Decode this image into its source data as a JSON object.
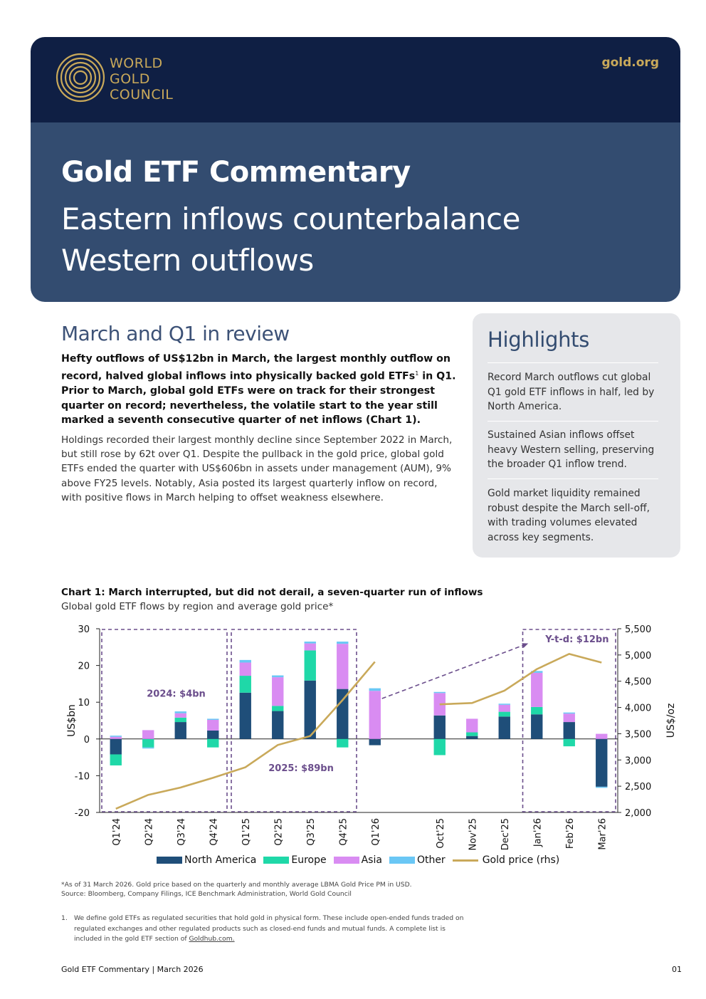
{
  "header": {
    "brand_lines": [
      "WORLD",
      "GOLD",
      "COUNCIL"
    ],
    "site": "gold.org",
    "title": "Gold ETF Commentary",
    "subtitle": "Eastern inflows counterbalance Western outflows"
  },
  "review": {
    "heading": "March and Q1 in review",
    "lead_a": "Hefty outflows of US$12bn in March, the largest monthly outflow on record, halved global inflows into physically backed gold ETFs",
    "lead_sup": "1",
    "lead_b": " in Q1. Prior to March, global gold ETFs were on track for their strongest quarter on record; nevertheless, the volatile start to the year still marked a seventh consecutive quarter of net inflows (Chart 1).",
    "body": "Holdings recorded their largest monthly decline since September 2022 in March, but still rose by 62t over Q1. Despite the pullback in the gold price, global gold ETFs ended the quarter with US$606bn in assets under management (AUM), 9% above FY25 levels. Notably, Asia posted its largest quarterly inflow on record, with positive flows in March helping to offset weakness elsewhere."
  },
  "highlights": {
    "heading": "Highlights",
    "items": [
      "Record March outflows cut global Q1 gold ETF inflows in half, led by North America.",
      "Sustained Asian inflows offset heavy Western selling, preserving the broader Q1 inflow trend.",
      "Gold market liquidity remained robust despite the March sell-off, with trading volumes elevated across key segments."
    ]
  },
  "chart_title": "Chart 1: March interrupted, but did not derail, a seven-quarter run of inflows",
  "chart_subtitle": "Global gold ETF flows by region and average gold price*",
  "chart_data": {
    "type": "bar",
    "stacked": true,
    "categories": [
      "Q1'24",
      "Q2'24",
      "Q3'24",
      "Q4'24",
      "Q1'25",
      "Q2'25",
      "Q3'25",
      "Q4'25",
      "Q1'26",
      "Oct'25",
      "Nov'25",
      "Dec'25",
      "Jan'26",
      "Feb'26",
      "Mar'26"
    ],
    "gap_after_index": 8,
    "series": [
      {
        "name": "North America",
        "color": "#1f4e79",
        "values": [
          -4.2,
          0,
          4.6,
          2.3,
          12.6,
          7.6,
          15.9,
          13.6,
          -1.7,
          6.4,
          0.8,
          6.1,
          6.7,
          4.6,
          -13.0
        ]
      },
      {
        "name": "Europe",
        "color": "#1fd8a8",
        "values": [
          -3.0,
          -2.3,
          1.2,
          -2.3,
          4.6,
          1.4,
          8.2,
          -2.3,
          0,
          -4.4,
          1.0,
          1.3,
          2.0,
          -2.0,
          0
        ]
      },
      {
        "name": "Asia",
        "color": "#d98cf2",
        "values": [
          0.6,
          2.4,
          1.2,
          2.9,
          3.6,
          7.8,
          1.9,
          12.3,
          13.1,
          6.1,
          3.7,
          1.9,
          9.3,
          2.3,
          1.4
        ]
      },
      {
        "name": "Other",
        "color": "#6ac7f5",
        "values": [
          0.3,
          -0.3,
          0.5,
          0.3,
          0.7,
          0.5,
          0.5,
          0.6,
          0.7,
          0.3,
          0,
          0.3,
          0.5,
          0.3,
          -0.3
        ]
      }
    ],
    "line": {
      "name": "Gold price (rhs)",
      "color": "#c9a95a",
      "values": [
        2070,
        2335,
        2475,
        2660,
        2860,
        3285,
        3455,
        4140,
        4870,
        4060,
        4085,
        4320,
        4730,
        5020,
        4855
      ]
    },
    "y_left": {
      "label": "US$bn",
      "ylim": [
        -20,
        30
      ],
      "ticks": [
        -20,
        -10,
        0,
        10,
        20,
        30
      ]
    },
    "y_right": {
      "label": "US$/oz",
      "ylim": [
        2000,
        5500
      ],
      "ticks": [
        "2,000",
        "2,500",
        "3,000",
        "3,500",
        "4,000",
        "4,500",
        "5,000",
        "5,500"
      ]
    },
    "annotations": [
      "2024: $4bn",
      "2025: $89bn",
      "Y-t-d: $12bn"
    ],
    "legend": "bottom"
  },
  "footnotes": {
    "note": "*As of 31 March 2026. Gold price based on the quarterly and monthly average LBMA Gold Price PM in USD.",
    "source": "Source: Bloomberg, Company Filings, ICE Benchmark Administration, World Gold Council",
    "num": "1.",
    "def_a": "We define gold ETFs as regulated securities that hold gold in physical form. These include open-ended funds traded on regulated exchanges and other regulated products such as closed-end funds and mutual funds. A complete list is included in the gold ETF section of ",
    "def_link": "Goldhub.com.",
    "def_b": ""
  },
  "footer": {
    "left": "Gold ETF Commentary | March 2026",
    "right": "01"
  }
}
